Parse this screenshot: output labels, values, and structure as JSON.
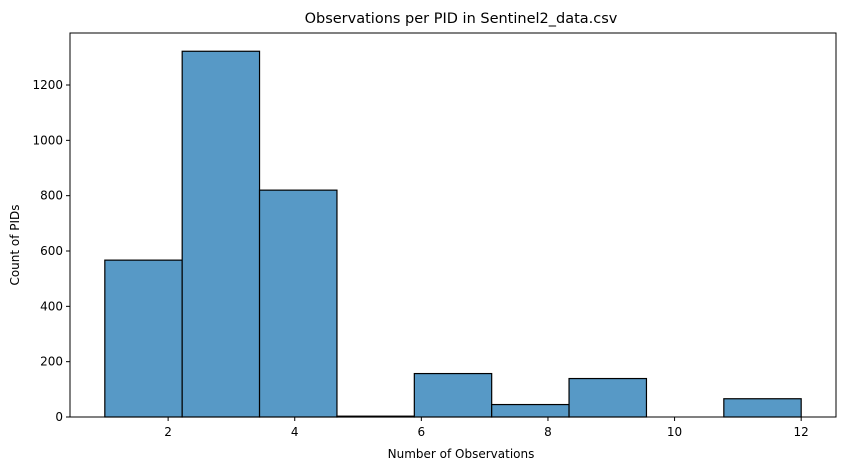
{
  "chart_data": {
    "type": "bar",
    "title": "Observations per PID in Sentinel2_data.csv",
    "xlabel": "Number of Observations",
    "ylabel": "Count of PIDs",
    "bins": [
      {
        "start": 1.0,
        "end": 2.222,
        "count": 567
      },
      {
        "start": 2.222,
        "end": 3.444,
        "count": 1322
      },
      {
        "start": 3.444,
        "end": 4.667,
        "count": 820
      },
      {
        "start": 4.667,
        "end": 5.889,
        "count": 3
      },
      {
        "start": 5.889,
        "end": 7.111,
        "count": 157
      },
      {
        "start": 7.111,
        "end": 8.333,
        "count": 45
      },
      {
        "start": 8.333,
        "end": 9.556,
        "count": 139
      },
      {
        "start": 9.556,
        "end": 10.778,
        "count": 0
      },
      {
        "start": 10.778,
        "end": 12.0,
        "count": 66
      }
    ],
    "xlim": [
      0.45,
      12.55
    ],
    "ylim": [
      0,
      1388
    ],
    "xticks": [
      2,
      4,
      6,
      8,
      10,
      12
    ],
    "yticks": [
      0,
      200,
      400,
      600,
      800,
      1000,
      1200
    ],
    "grid": false,
    "bar_color": "#5799c6",
    "edge_color": "#000000"
  }
}
